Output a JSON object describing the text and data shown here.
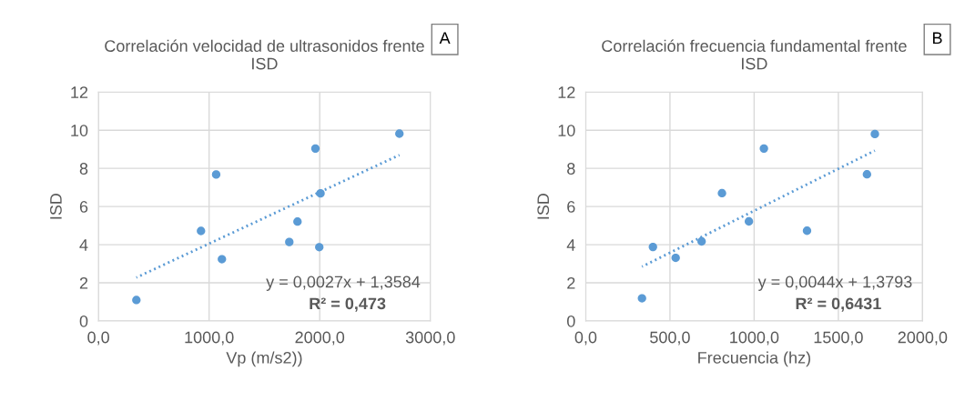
{
  "chart_data": [
    {
      "type": "scatter",
      "title": "Correlación velocidad de ultrasonidos frente\nISD",
      "xlabel": "Vp (m/s2))",
      "ylabel": "ISD",
      "annotations": [
        "A",
        "y = 0,0027x + 1,3584",
        "R² = 0,473"
      ],
      "series": [
        {
          "color": "#5b9bd5",
          "marker": "circle",
          "x": [
            343,
            927,
            1064,
            1116,
            1725,
            1799,
            1961,
            1996,
            2007,
            2720
          ],
          "values": [
            1.1,
            4.72,
            7.68,
            3.24,
            4.14,
            5.21,
            9.04,
            3.87,
            6.69,
            9.82
          ]
        },
        {
          "type": "line",
          "color": "#5b9bd5",
          "line_style": "dotted",
          "x": [
            343,
            2720
          ],
          "values": [
            2.28,
            8.7
          ]
        }
      ],
      "xlim": [
        0,
        3000
      ],
      "xticks": [
        {
          "value": 0,
          "label": "0,0"
        },
        {
          "value": 1000,
          "label": "1000,0"
        },
        {
          "value": 2000,
          "label": "2000,0"
        },
        {
          "value": 3000,
          "label": "3000,0"
        }
      ],
      "ylim": [
        0,
        12
      ],
      "yticks": [
        0,
        2,
        4,
        6,
        8,
        10,
        12
      ],
      "grid": true,
      "legend": false
    },
    {
      "type": "scatter",
      "title": "Correlación frecuencia fundamental frente\nISD",
      "xlabel": "Frecuencia (hz)",
      "ylabel": "ISD",
      "annotations": [
        "B",
        "y = 0,0044x + 1,3793",
        "R² = 0,6431"
      ],
      "series": [
        {
          "color": "#5b9bd5",
          "marker": "circle",
          "x": [
            334,
            399,
            534,
            688,
            809,
            969,
            1058,
            1314,
            1670,
            1717
          ],
          "values": [
            1.19,
            3.88,
            3.31,
            4.17,
            6.7,
            5.22,
            9.04,
            4.73,
            7.69,
            9.8
          ]
        },
        {
          "type": "line",
          "color": "#5b9bd5",
          "line_style": "dotted",
          "x": [
            334,
            1717
          ],
          "values": [
            2.85,
            8.93
          ]
        }
      ],
      "xlim": [
        0,
        2000
      ],
      "xticks": [
        {
          "value": 0,
          "label": "0,0"
        },
        {
          "value": 500,
          "label": "500,0"
        },
        {
          "value": 1000,
          "label": "1000,0"
        },
        {
          "value": 1500,
          "label": "1500,0"
        },
        {
          "value": 2000,
          "label": "2000,0"
        }
      ],
      "ylim": [
        0,
        12
      ],
      "yticks": [
        0,
        2,
        4,
        6,
        8,
        10,
        12
      ],
      "grid": true,
      "legend": false
    }
  ]
}
